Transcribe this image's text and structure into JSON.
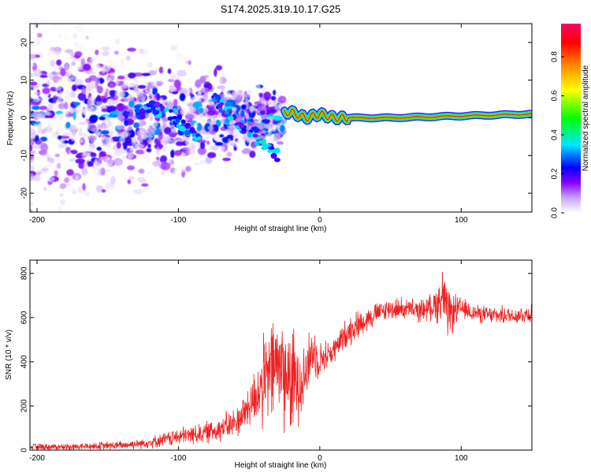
{
  "chart_data": [
    {
      "type": "heatmap",
      "title": "S174.2025.319.10.17.G25",
      "xlabel": "Height of straight line (km)",
      "ylabel": "Frequency (Hz)",
      "xlim": [
        -205,
        150
      ],
      "ylim": [
        -25,
        25
      ],
      "xticks": [
        -200,
        -100,
        0,
        100
      ],
      "yticks": [
        -20,
        -10,
        0,
        10,
        20
      ],
      "colorbar": {
        "label": "Normalized spectral amplitude",
        "range": [
          0,
          0.97
        ],
        "ticks": [
          0.0,
          0.2,
          0.4,
          0.6,
          0.8
        ],
        "tick_labels": [
          "0.0",
          "0.2",
          "0.4",
          "0.6",
          "0.8"
        ],
        "colors": [
          "#ffffff",
          "#c8a2ff",
          "#8800ff",
          "#0000ff",
          "#00e6ff",
          "#00ff00",
          "#ffff00",
          "#ff8800",
          "#ff0000",
          "#ff0066"
        ]
      },
      "features": {
        "noise_region_x": [
          -205,
          -25
        ],
        "noise_spread_hz": 25,
        "signal_trace_start_x": -25,
        "signal_trace": {
          "x": [
            -20,
            -10,
            0,
            10,
            20,
            50,
            100,
            150
          ],
          "y": [
            1.5,
            0.0,
            1.0,
            0.0,
            0.0,
            0.0,
            0.5,
            1.0
          ]
        },
        "descending_tracks": [
          {
            "x": [
              -130,
              -110,
              -95,
              -85
            ],
            "y": [
              2,
              3,
              -3,
              -6
            ]
          },
          {
            "x": [
              -75,
              -60,
              -45,
              -30
            ],
            "y": [
              5,
              0,
              -6,
              -10
            ]
          }
        ]
      }
    },
    {
      "type": "line",
      "title": "",
      "xlabel": "Height of straight line (km)",
      "ylabel": "SNR (10 * v/v)",
      "xlim": [
        -205,
        150
      ],
      "ylim": [
        0,
        860
      ],
      "xticks": [
        -200,
        -100,
        0,
        100
      ],
      "yticks": [
        0,
        200,
        400,
        600,
        800
      ],
      "color": "#ee2222",
      "series": [
        {
          "name": "SNR",
          "x": [
            -205,
            -180,
            -160,
            -140,
            -120,
            -100,
            -80,
            -60,
            -50,
            -40,
            -30,
            -20,
            -10,
            -5,
            0,
            10,
            20,
            30,
            40,
            50,
            60,
            70,
            80,
            88,
            90,
            95,
            100,
            110,
            120,
            130,
            140,
            150
          ],
          "y": [
            15,
            15,
            18,
            22,
            35,
            60,
            80,
            120,
            200,
            300,
            400,
            300,
            350,
            450,
            410,
            450,
            540,
            580,
            620,
            640,
            640,
            630,
            650,
            700,
            600,
            630,
            640,
            620,
            610,
            610,
            610,
            620
          ],
          "spread": [
            15,
            15,
            18,
            20,
            25,
            40,
            50,
            70,
            100,
            200,
            260,
            250,
            150,
            120,
            80,
            60,
            70,
            60,
            50,
            50,
            50,
            50,
            60,
            150,
            120,
            80,
            50,
            40,
            40,
            40,
            40,
            50
          ]
        }
      ]
    }
  ]
}
